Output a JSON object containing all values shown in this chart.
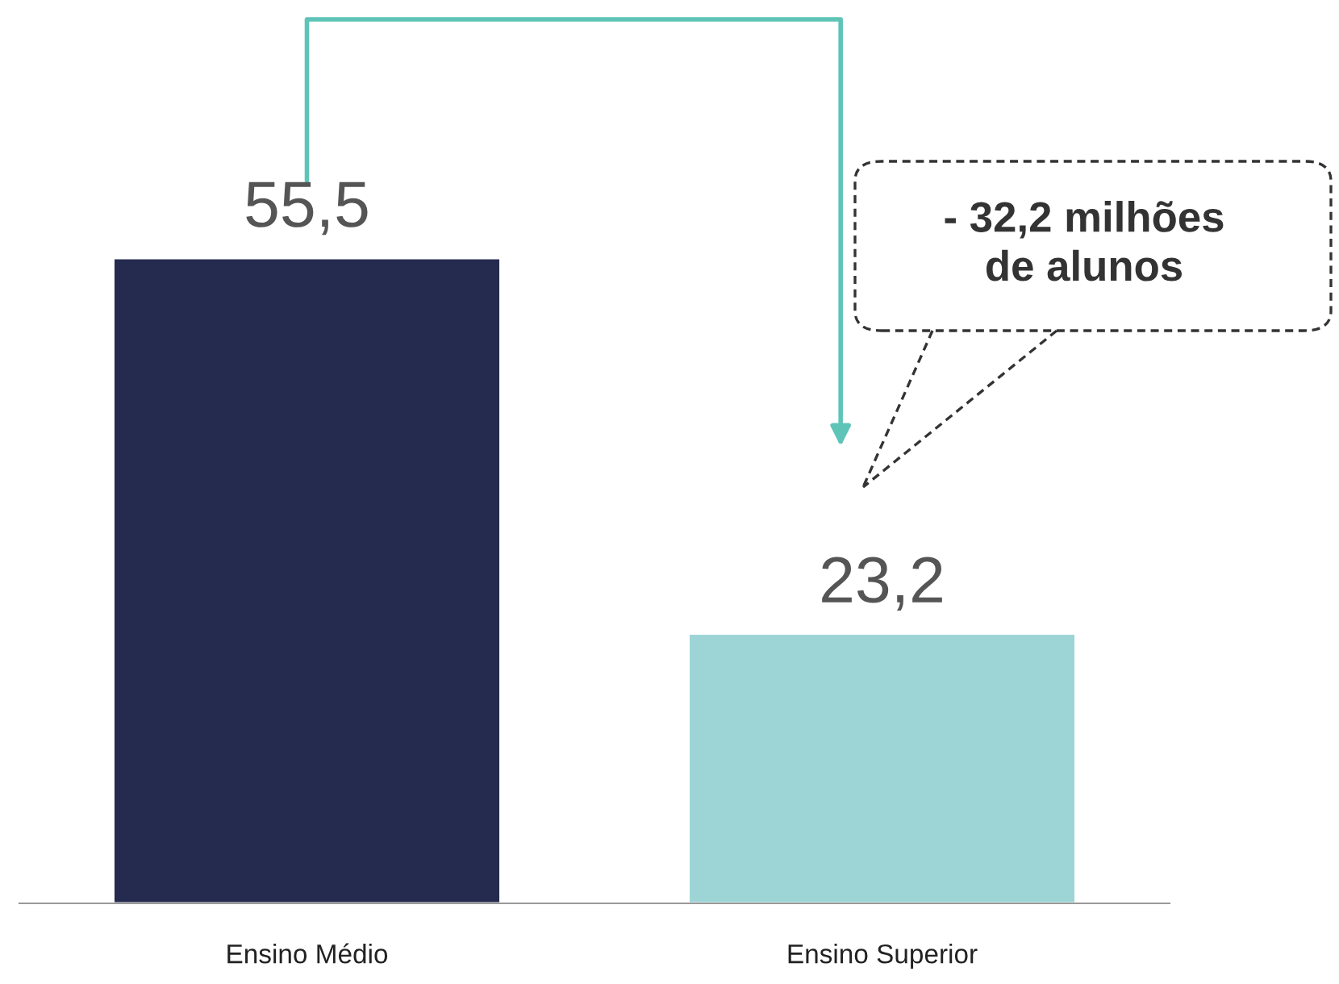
{
  "chart_data": {
    "type": "bar",
    "categories": [
      "Ensino Médio",
      "Ensino Superior"
    ],
    "values": [
      55.5,
      23.2
    ],
    "colors": [
      "#252a4f",
      "#9dd4d6"
    ],
    "value_labels": [
      "55,5",
      "23,2"
    ],
    "annotations": [
      "- 32,2 milhões\nde alunos"
    ],
    "grid": false,
    "legend": false
  }
}
